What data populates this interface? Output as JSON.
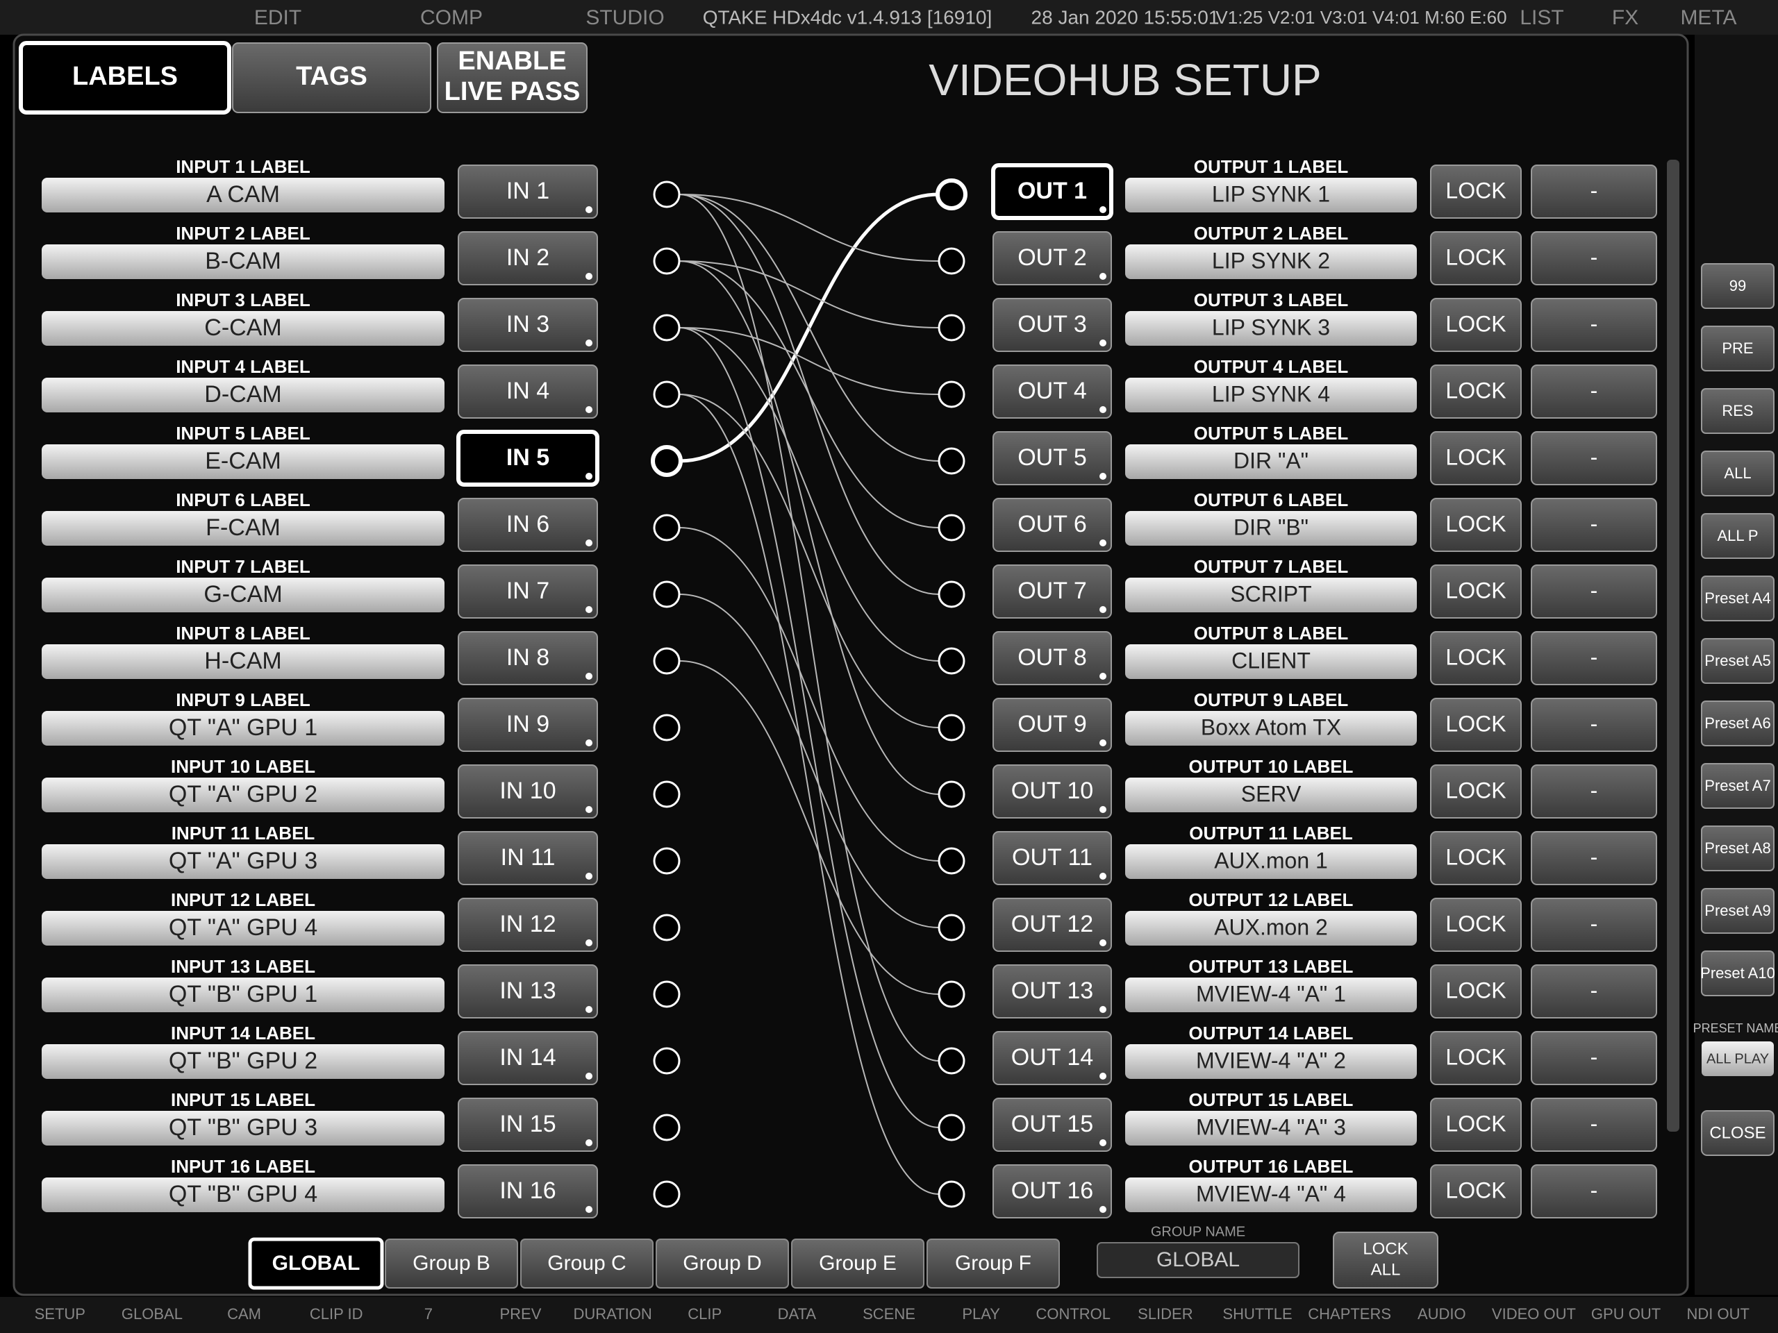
{
  "top_bar": {
    "left_tabs": [
      "EDIT",
      "COMP",
      "STUDIO"
    ],
    "app": "QTAKE HDx4dc v1.4.913 [16910]",
    "datetime": "28 Jan 2020 15:55:01",
    "status": "V1:25 V2:01 V3:01 V4:01 M:60 E:60",
    "right_tabs": [
      "LIST",
      "FX",
      "META"
    ]
  },
  "mode_tabs": [
    {
      "lines": [
        "LABELS"
      ],
      "selected": true
    },
    {
      "lines": [
        "TAGS"
      ]
    },
    {
      "lines": [
        "ENABLE",
        "LIVE PASS"
      ]
    }
  ],
  "title": "VIDEOHUB SETUP",
  "inputs": [
    {
      "caption": "INPUT 1 LABEL",
      "label": "A CAM",
      "button": "IN 1"
    },
    {
      "caption": "INPUT 2 LABEL",
      "label": "B-CAM",
      "button": "IN 2"
    },
    {
      "caption": "INPUT 3 LABEL",
      "label": "C-CAM",
      "button": "IN 3"
    },
    {
      "caption": "INPUT 4 LABEL",
      "label": "D-CAM",
      "button": "IN 4"
    },
    {
      "caption": "INPUT 5 LABEL",
      "label": "E-CAM",
      "button": "IN 5",
      "selected": true
    },
    {
      "caption": "INPUT 6 LABEL",
      "label": "F-CAM",
      "button": "IN 6"
    },
    {
      "caption": "INPUT 7 LABEL",
      "label": "G-CAM",
      "button": "IN 7"
    },
    {
      "caption": "INPUT 8 LABEL",
      "label": "H-CAM",
      "button": "IN 8"
    },
    {
      "caption": "INPUT 9 LABEL",
      "label": "QT \"A\" GPU 1",
      "button": "IN 9"
    },
    {
      "caption": "INPUT 10 LABEL",
      "label": "QT \"A\" GPU 2",
      "button": "IN 10"
    },
    {
      "caption": "INPUT 11 LABEL",
      "label": "QT \"A\" GPU 3",
      "button": "IN 11"
    },
    {
      "caption": "INPUT 12 LABEL",
      "label": "QT \"A\" GPU 4",
      "button": "IN 12"
    },
    {
      "caption": "INPUT 13 LABEL",
      "label": "QT \"B\" GPU 1",
      "button": "IN 13"
    },
    {
      "caption": "INPUT 14 LABEL",
      "label": "QT \"B\" GPU 2",
      "button": "IN 14"
    },
    {
      "caption": "INPUT 15 LABEL",
      "label": "QT \"B\" GPU 3",
      "button": "IN 15"
    },
    {
      "caption": "INPUT 16 LABEL",
      "label": "QT \"B\" GPU 4",
      "button": "IN 16"
    }
  ],
  "outputs": [
    {
      "caption": "OUTPUT 1 LABEL",
      "label": "LIP SYNK 1",
      "button": "OUT 1",
      "lock": "LOCK",
      "extra": "-",
      "source": 5,
      "selected": true
    },
    {
      "caption": "OUTPUT 2 LABEL",
      "label": "LIP SYNK 2",
      "button": "OUT 2",
      "lock": "LOCK",
      "extra": "-",
      "source": 1
    },
    {
      "caption": "OUTPUT 3 LABEL",
      "label": "LIP SYNK 3",
      "button": "OUT 3",
      "lock": "LOCK",
      "extra": "-",
      "source": 2
    },
    {
      "caption": "OUTPUT 4 LABEL",
      "label": "LIP SYNK 4",
      "button": "OUT 4",
      "lock": "LOCK",
      "extra": "-",
      "source": 3
    },
    {
      "caption": "OUTPUT 5 LABEL",
      "label": "DIR \"A\"",
      "button": "OUT 5",
      "lock": "LOCK",
      "extra": "-",
      "source": 1
    },
    {
      "caption": "OUTPUT 6 LABEL",
      "label": "DIR \"B\"",
      "button": "OUT 6",
      "lock": "LOCK",
      "extra": "-",
      "source": 2
    },
    {
      "caption": "OUTPUT 7 LABEL",
      "label": "SCRIPT",
      "button": "OUT 7",
      "lock": "LOCK",
      "extra": "-",
      "source": 1
    },
    {
      "caption": "OUTPUT 8 LABEL",
      "label": "CLIENT",
      "button": "OUT 8",
      "lock": "LOCK",
      "extra": "-",
      "source": 3
    },
    {
      "caption": "OUTPUT 9 LABEL",
      "label": "Boxx Atom TX",
      "button": "OUT 9",
      "lock": "LOCK",
      "extra": "-",
      "source": 4
    },
    {
      "caption": "OUTPUT 10 LABEL",
      "label": "SERV",
      "button": "OUT 10",
      "lock": "LOCK",
      "extra": "-",
      "source": 2
    },
    {
      "caption": "OUTPUT 11 LABEL",
      "label": "AUX.mon 1",
      "button": "OUT 11",
      "lock": "LOCK",
      "extra": "-",
      "source": 6
    },
    {
      "caption": "OUTPUT 12 LABEL",
      "label": "AUX.mon 2",
      "button": "OUT 12",
      "lock": "LOCK",
      "extra": "-",
      "source": 7
    },
    {
      "caption": "OUTPUT 13 LABEL",
      "label": "MVIEW-4 \"A\" 1",
      "button": "OUT 13",
      "lock": "LOCK",
      "extra": "-",
      "source": 8
    },
    {
      "caption": "OUTPUT 14 LABEL",
      "label": "MVIEW-4 \"A\" 2",
      "button": "OUT 14",
      "lock": "LOCK",
      "extra": "-",
      "source": 1
    },
    {
      "caption": "OUTPUT 15 LABEL",
      "label": "MVIEW-4 \"A\" 3",
      "button": "OUT 15",
      "lock": "LOCK",
      "extra": "-",
      "source": 3
    },
    {
      "caption": "OUTPUT 16 LABEL",
      "label": "MVIEW-4 \"A\" 4",
      "button": "OUT 16",
      "lock": "LOCK",
      "extra": "-",
      "source": 4
    }
  ],
  "lock_all": {
    "lines": [
      "LOCK",
      "ALL"
    ]
  },
  "group_name": {
    "caption": "GROUP NAME",
    "value": "GLOBAL"
  },
  "group_tabs": [
    {
      "label": "GLOBAL",
      "selected": true
    },
    {
      "label": "Group B"
    },
    {
      "label": "Group C"
    },
    {
      "label": "Group D"
    },
    {
      "label": "Group E"
    },
    {
      "label": "Group F"
    }
  ],
  "right_panel": {
    "items": [
      "99",
      "PRE",
      "RES",
      "ALL",
      "ALL P",
      "Preset A4",
      "Preset A5",
      "Preset A6",
      "Preset A7",
      "Preset A8",
      "Preset A9",
      "Preset A10"
    ],
    "preset_name_caption": "PRESET NAME",
    "preset_name": "ALL PLAY",
    "close": "CLOSE"
  },
  "footer": [
    "SETUP",
    "GLOBAL",
    "CAM",
    "CLIP ID",
    "7",
    "PREV",
    "DURATION",
    "CLIP",
    "DATA",
    "SCENE",
    "PLAY",
    "CONTROL",
    "SLIDER",
    "SHUTTLE",
    "CHAPTERS",
    "AUDIO",
    "VIDEO OUT",
    "GPU OUT",
    "NDI OUT"
  ]
}
